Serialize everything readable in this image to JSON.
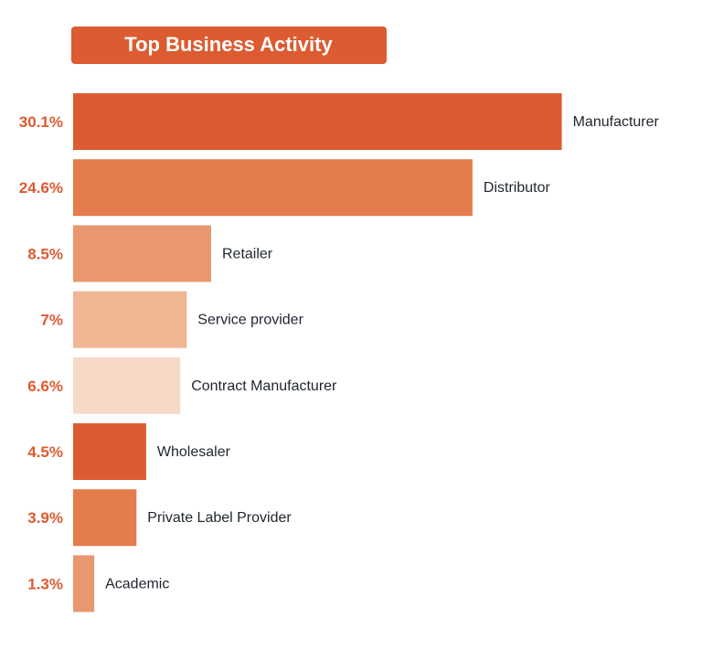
{
  "chart_data": {
    "type": "bar",
    "orientation": "horizontal",
    "title": "Top Business Activity",
    "categories": [
      "Manufacturer",
      "Distributor",
      "Retailer",
      "Service provider",
      "Contract Manufacturer",
      "Wholesaler",
      "Private Label Provider",
      "Academic"
    ],
    "values": [
      30.1,
      24.6,
      8.5,
      7,
      6.6,
      4.5,
      3.9,
      1.3
    ],
    "value_labels": [
      "30.1%",
      "24.6%",
      "8.5%",
      "7%",
      "6.6%",
      "4.5%",
      "3.9%",
      "1.3%"
    ],
    "unit": "%",
    "bar_colors": [
      "#dc5b30",
      "#e57c4b",
      "#e9976e",
      "#f0b593",
      "#f6d9c7",
      "#dc5b30",
      "#e57c4b",
      "#e9976e"
    ],
    "title_background": "#dc5b30",
    "value_label_color": "#dc5b30",
    "grid": false,
    "legend": "none"
  }
}
